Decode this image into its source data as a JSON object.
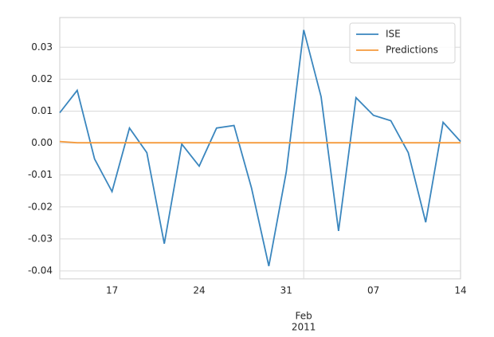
{
  "chart_data": {
    "type": "line",
    "categories": [
      null,
      null,
      null,
      "17",
      null,
      null,
      null,
      null,
      "24",
      null,
      null,
      null,
      null,
      "31",
      "Feb",
      null,
      null,
      null,
      "07",
      null,
      null,
      null,
      null,
      "14"
    ],
    "x_major_sublabel": "2011",
    "series": [
      {
        "name": "ISE",
        "color": "#3a86be",
        "values": [
          0.0095,
          0.0165,
          -0.005,
          -0.0152,
          0.0047,
          -0.003,
          -0.0315,
          -0.0003,
          -0.0072,
          0.0047,
          0.0055,
          -0.014,
          -0.0385,
          -0.009,
          0.0354,
          0.0145,
          -0.0275,
          0.0142,
          0.0087,
          0.007,
          -0.003,
          -0.0248,
          0.0065,
          0.0005
        ]
      },
      {
        "name": "Predictions",
        "color": "#f59a3c",
        "values": [
          0.0005,
          0.0001,
          0.0001,
          0.0001,
          0.0001,
          0.0001,
          0.0001,
          0.0001,
          0.0001,
          0.0001,
          0.0001,
          0.0001,
          0.0001,
          0.0001,
          0.0001,
          0.0001,
          0.0001,
          0.0001,
          0.0001,
          0.0001,
          0.0001,
          0.0001,
          0.0001,
          0.0001
        ]
      }
    ],
    "ylim": [
      -0.0425,
      0.0393
    ],
    "yticks": [
      -0.04,
      -0.03,
      -0.02,
      -0.01,
      {
        "value": 0,
        "label": "0.00"
      },
      0.01,
      0.02,
      0.03
    ],
    "grid": true,
    "legend": "upper right"
  }
}
